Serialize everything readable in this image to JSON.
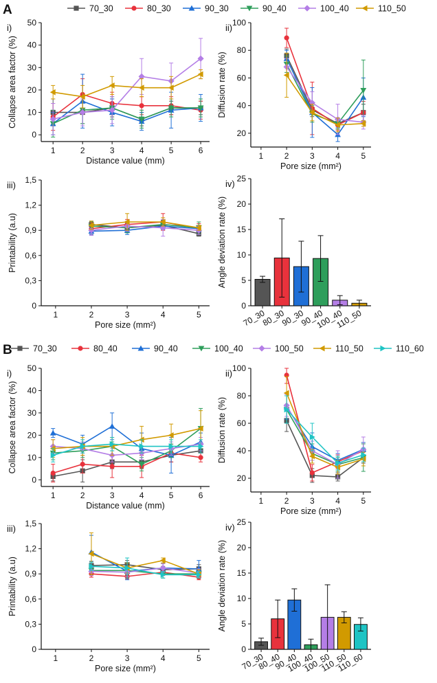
{
  "figure": {
    "sections": [
      {
        "letter": "A",
        "legend": [
          "70_30",
          "80_30",
          "90_30",
          "90_40",
          "100_40",
          "110_50"
        ]
      },
      {
        "letter": "B",
        "legend": [
          "70_30",
          "80_40",
          "90_40",
          "100_40",
          "100_50",
          "110_50",
          "110_60"
        ]
      }
    ],
    "colors": [
      "#555555",
      "#e8323c",
      "#1f6fd6",
      "#2e9e5b",
      "#b47ee6",
      "#d19a00",
      "#1fc4c4"
    ],
    "markers": [
      "square",
      "circle",
      "triangle-up",
      "triangle-down",
      "diamond",
      "triangle-left",
      "triangle-right"
    ]
  },
  "chart_data": [
    {
      "id": "A-i",
      "section": "A",
      "panel": "i)",
      "type": "line",
      "xlabel": "Distance value (mm)",
      "ylabel": "Collapse area factor (%)",
      "x": [
        1,
        2,
        3,
        4,
        5,
        6
      ],
      "xlim": [
        0.6,
        6.3
      ],
      "ylim": [
        -3,
        50
      ],
      "xticks": [
        1,
        2,
        3,
        4,
        5,
        6
      ],
      "yticks": [
        0,
        10,
        20,
        30,
        40,
        50
      ],
      "series": [
        {
          "name": "70_30",
          "values": [
            10,
            10,
            12,
            7,
            12,
            12
          ],
          "errors": [
            6,
            5,
            4,
            3,
            3,
            3
          ]
        },
        {
          "name": "80_30",
          "values": [
            8,
            18,
            14,
            13,
            13,
            11
          ],
          "errors": [
            6,
            7,
            5,
            4,
            4,
            4
          ]
        },
        {
          "name": "90_30",
          "values": [
            5,
            15,
            10,
            6,
            11,
            12
          ],
          "errors": [
            5,
            12,
            6,
            4,
            8,
            6
          ]
        },
        {
          "name": "90_40",
          "values": [
            5,
            11,
            12,
            7,
            12,
            12
          ],
          "errors": [
            6,
            6,
            5,
            4,
            4,
            4
          ]
        },
        {
          "name": "100_40",
          "values": [
            7,
            10,
            11,
            26,
            24,
            34
          ],
          "errors": [
            7,
            6,
            6,
            8,
            8,
            9
          ]
        },
        {
          "name": "110_50",
          "values": [
            19,
            17,
            22,
            21,
            21,
            27
          ],
          "errors": [
            3,
            5,
            4,
            4,
            5,
            2
          ]
        }
      ]
    },
    {
      "id": "A-ii",
      "section": "A",
      "panel": "ii)",
      "type": "line",
      "xlabel": "Pore size (mm²)",
      "ylabel": "Diffusion rate (%)",
      "x": [
        2,
        3,
        4,
        5
      ],
      "xlim": [
        0.6,
        5.3
      ],
      "ylim": [
        10,
        100
      ],
      "xticks": [
        1,
        2,
        3,
        4,
        5
      ],
      "yticks": [
        20,
        40,
        60,
        80,
        100
      ],
      "series": [
        {
          "name": "70_30",
          "values": [
            76,
            37,
            27,
            35
          ],
          "errors": [
            5,
            5,
            4,
            6
          ]
        },
        {
          "name": "80_30",
          "values": [
            89,
            38,
            26,
            35
          ],
          "errors": [
            7,
            19,
            4,
            8
          ]
        },
        {
          "name": "90_30",
          "values": [
            74,
            35,
            19,
            46
          ],
          "errors": [
            6,
            18,
            5,
            14
          ]
        },
        {
          "name": "90_40",
          "values": [
            70,
            34,
            27,
            51
          ],
          "errors": [
            6,
            6,
            4,
            22
          ]
        },
        {
          "name": "100_40",
          "values": [
            68,
            42,
            30,
            28
          ],
          "errors": [
            6,
            8,
            11,
            5
          ]
        },
        {
          "name": "110_50",
          "values": [
            62,
            35,
            26,
            27
          ],
          "errors": [
            16,
            6,
            5,
            2
          ]
        }
      ]
    },
    {
      "id": "A-iii",
      "section": "A",
      "panel": "iii)",
      "type": "line",
      "xlabel": "Pore size (mm²)",
      "ylabel": "Printability (a.u)",
      "x": [
        2,
        3,
        4,
        5
      ],
      "xlim": [
        0.6,
        5.3
      ],
      "ylim": [
        0,
        1.5
      ],
      "xticks": [
        1,
        2,
        3,
        4,
        5
      ],
      "yticks": [
        0,
        0.3,
        0.6,
        0.9,
        1.2,
        1.5
      ],
      "yticklabels": [
        "0",
        "0,3",
        "0,6",
        "0,9",
        "1,2",
        "1,5"
      ],
      "series": [
        {
          "name": "70_30",
          "values": [
            0.97,
            0.93,
            0.96,
            0.86
          ],
          "errors": [
            0.04,
            0.04,
            0.05,
            0.03
          ]
        },
        {
          "name": "80_30",
          "values": [
            0.92,
            0.97,
            1.0,
            0.92
          ],
          "errors": [
            0.07,
            0.06,
            0.1,
            0.06
          ]
        },
        {
          "name": "90_30",
          "values": [
            0.89,
            0.9,
            0.95,
            0.92
          ],
          "errors": [
            0.04,
            0.05,
            0.04,
            0.04
          ]
        },
        {
          "name": "90_40",
          "values": [
            0.95,
            0.93,
            0.97,
            0.93
          ],
          "errors": [
            0.05,
            0.06,
            0.05,
            0.07
          ]
        },
        {
          "name": "100_40",
          "values": [
            0.9,
            0.95,
            0.93,
            0.9
          ],
          "errors": [
            0.06,
            0.06,
            0.1,
            0.05
          ]
        },
        {
          "name": "110_50",
          "values": [
            0.96,
            1.0,
            1.0,
            0.93
          ],
          "errors": [
            0.05,
            0.1,
            0.05,
            0.03
          ]
        }
      ]
    },
    {
      "id": "A-iv",
      "section": "A",
      "panel": "iv)",
      "type": "bar",
      "ylabel": "Angle deviation rate (%)",
      "categories": [
        "70_30",
        "80_30",
        "90_30",
        "90_40",
        "100_40",
        "110_50"
      ],
      "values": [
        5.2,
        9.4,
        7.7,
        9.3,
        1.1,
        0.5
      ],
      "errors": [
        0.6,
        7.7,
        5.0,
        4.5,
        0.9,
        0.6
      ],
      "ylim": [
        0,
        25
      ],
      "yticks": [
        0,
        5,
        10,
        15,
        20,
        25
      ]
    },
    {
      "id": "B-i",
      "section": "B",
      "panel": "i)",
      "type": "line",
      "xlabel": "Distance value (mm)",
      "ylabel": "Collapse area factor (%)",
      "x": [
        1,
        2,
        3,
        4,
        5,
        6
      ],
      "xlim": [
        0.6,
        6.3
      ],
      "ylim": [
        -3,
        50
      ],
      "xticks": [
        1,
        2,
        3,
        4,
        5,
        6
      ],
      "yticks": [
        0,
        10,
        20,
        30,
        40,
        50
      ],
      "series": [
        {
          "name": "70_30",
          "values": [
            1.5,
            4,
            8,
            8,
            11,
            13
          ],
          "errors": [
            2,
            5,
            3,
            3,
            3,
            3
          ]
        },
        {
          "name": "80_40",
          "values": [
            3,
            7,
            6,
            6,
            12,
            10
          ],
          "errors": [
            4,
            4,
            5,
            5,
            4,
            2
          ]
        },
        {
          "name": "90_40",
          "values": [
            21,
            16,
            24,
            14,
            11,
            17
          ],
          "errors": [
            2,
            4,
            6,
            7,
            8,
            4
          ]
        },
        {
          "name": "100_40",
          "values": [
            12,
            13,
            15,
            7,
            13,
            23
          ],
          "errors": [
            3,
            3,
            2,
            3,
            3,
            9
          ]
        },
        {
          "name": "100_50",
          "values": [
            15,
            14,
            11,
            12,
            14,
            16
          ],
          "errors": [
            3,
            3,
            3,
            3,
            3,
            3
          ]
        },
        {
          "name": "110_50",
          "values": [
            14,
            15,
            15,
            18,
            20,
            23
          ],
          "errors": [
            4,
            4,
            4,
            6,
            5,
            8
          ]
        },
        {
          "name": "110_60",
          "values": [
            11,
            15,
            16,
            15,
            15,
            15
          ],
          "errors": [
            3,
            3,
            3,
            3,
            3,
            3
          ]
        }
      ]
    },
    {
      "id": "B-ii",
      "section": "B",
      "panel": "ii)",
      "type": "line",
      "xlabel": "Pore size (mm²)",
      "ylabel": "Diffusion rate (%)",
      "x": [
        2,
        3,
        4,
        5
      ],
      "xlim": [
        0.6,
        5.3
      ],
      "ylim": [
        10,
        100
      ],
      "xticks": [
        1,
        2,
        3,
        4,
        5
      ],
      "yticks": [
        20,
        40,
        60,
        80,
        100
      ],
      "series": [
        {
          "name": "70_30",
          "values": [
            62,
            22,
            21,
            35
          ],
          "errors": [
            8,
            5,
            3,
            4
          ]
        },
        {
          "name": "80_40",
          "values": [
            95,
            24,
            32,
            40
          ],
          "errors": [
            6,
            6,
            5,
            6
          ]
        },
        {
          "name": "90_40",
          "values": [
            72,
            43,
            33,
            41
          ],
          "errors": [
            9,
            10,
            5,
            5
          ]
        },
        {
          "name": "100_40",
          "values": [
            70,
            38,
            30,
            35
          ],
          "errors": [
            10,
            7,
            5,
            10
          ]
        },
        {
          "name": "100_50",
          "values": [
            73,
            40,
            30,
            41
          ],
          "errors": [
            8,
            7,
            10,
            9
          ]
        },
        {
          "name": "110_50",
          "values": [
            82,
            36,
            28,
            34
          ],
          "errors": [
            12,
            5,
            5,
            5
          ]
        },
        {
          "name": "110_60",
          "values": [
            70,
            50,
            31,
            37
          ],
          "errors": [
            10,
            10,
            5,
            5
          ]
        }
      ]
    },
    {
      "id": "B-iii",
      "section": "B",
      "panel": "iii)",
      "type": "line",
      "xlabel": "Pore size (mm²)",
      "ylabel": "Printability (a.u)",
      "x": [
        2,
        3,
        4,
        5
      ],
      "xlim": [
        0.6,
        5.3
      ],
      "ylim": [
        0,
        1.5
      ],
      "xticks": [
        1,
        2,
        3,
        4,
        5
      ],
      "yticks": [
        0,
        0.3,
        0.6,
        0.9,
        1.2,
        1.5
      ],
      "yticklabels": [
        "0",
        "0,3",
        "0,6",
        "0,9",
        "1,2",
        "1,5"
      ],
      "series": [
        {
          "name": "70_30",
          "values": [
            1.0,
            1.01,
            0.95,
            0.96
          ],
          "errors": [
            0.05,
            0.05,
            0.04,
            0.05
          ]
        },
        {
          "name": "80_40",
          "values": [
            0.9,
            0.87,
            0.92,
            0.86
          ],
          "errors": [
            0.04,
            0.03,
            0.04,
            0.03
          ]
        },
        {
          "name": "90_40",
          "values": [
            1.16,
            0.93,
            0.97,
            0.96
          ],
          "errors": [
            0.2,
            0.1,
            0.06,
            0.1
          ]
        },
        {
          "name": "100_40",
          "values": [
            0.94,
            0.94,
            0.9,
            0.9
          ],
          "errors": [
            0.05,
            0.05,
            0.05,
            0.05
          ]
        },
        {
          "name": "100_50",
          "values": [
            0.93,
            0.92,
            0.97,
            0.91
          ],
          "errors": [
            0.05,
            0.05,
            0.05,
            0.05
          ]
        },
        {
          "name": "110_50",
          "values": [
            1.14,
            0.97,
            1.06,
            0.9
          ],
          "errors": [
            0.25,
            0.06,
            0.03,
            0.05
          ]
        },
        {
          "name": "110_60",
          "values": [
            0.99,
            0.97,
            0.89,
            0.89
          ],
          "errors": [
            0.05,
            0.12,
            0.04,
            0.04
          ]
        }
      ]
    },
    {
      "id": "B-iv",
      "section": "B",
      "panel": "iv)",
      "type": "bar",
      "ylabel": "Angle deviation rate (%)",
      "categories": [
        "70_30",
        "80_40",
        "90_40",
        "100_40",
        "100_50",
        "110_50",
        "110_60"
      ],
      "values": [
        1.5,
        6.0,
        9.7,
        0.9,
        6.3,
        6.3,
        4.9
      ],
      "errors": [
        0.7,
        3.7,
        2.2,
        1.1,
        6.4,
        1.1,
        1.3
      ],
      "ylim": [
        0,
        25
      ],
      "yticks": [
        0,
        5,
        10,
        15,
        20,
        25
      ]
    }
  ]
}
